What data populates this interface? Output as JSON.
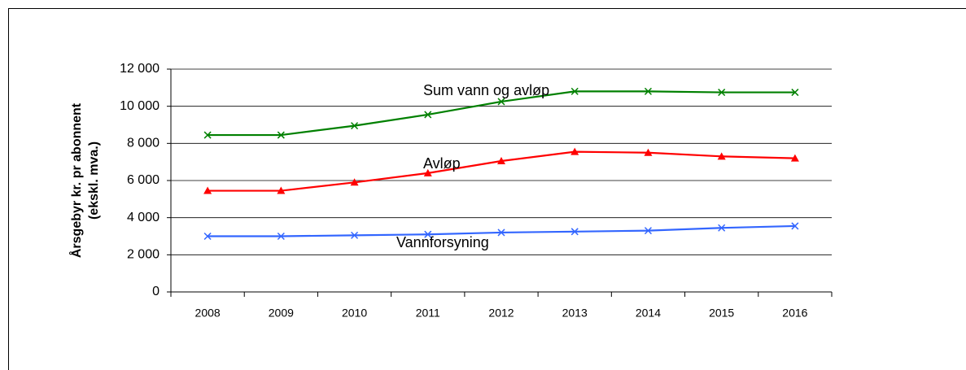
{
  "chart_data": {
    "type": "line",
    "y_label": [
      "Årsgebyr kr. pr abonnent",
      "(ekskl. mva.)"
    ],
    "categories": [
      "2008",
      "2009",
      "2010",
      "2011",
      "2012",
      "2013",
      "2014",
      "2015",
      "2016"
    ],
    "series": [
      {
        "name": "Sum vann og avløp",
        "color": "#008000",
        "marker": "x",
        "values": [
          8450,
          8450,
          8950,
          9550,
          10250,
          10800,
          10800,
          10750,
          10750
        ]
      },
      {
        "name": "Avløp",
        "color": "#ff0000",
        "marker": "triangle",
        "values": [
          5450,
          5450,
          5900,
          6400,
          7050,
          7550,
          7500,
          7300,
          7200
        ]
      },
      {
        "name": "Vannforsyning",
        "color": "#3366ff",
        "marker": "x",
        "values": [
          3000,
          3000,
          3050,
          3100,
          3200,
          3250,
          3300,
          3450,
          3550
        ]
      }
    ],
    "ylim": [
      0,
      12000
    ],
    "yticks": [
      0,
      {
        "value": 2000,
        "label": "2 000"
      },
      {
        "value": 4000,
        "label": "4 000"
      },
      {
        "value": 6000,
        "label": "6 000"
      },
      {
        "value": 8000,
        "label": "8 000"
      },
      {
        "value": 10000,
        "label": "10 000"
      },
      {
        "value": 12000,
        "label": "12 000"
      }
    ],
    "grid": true
  }
}
